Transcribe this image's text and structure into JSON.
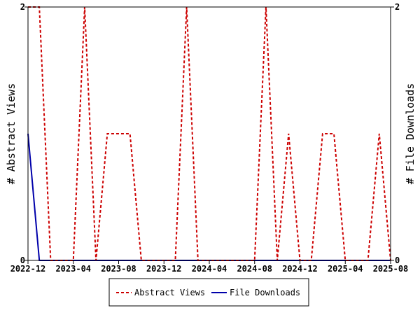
{
  "chart_data": {
    "type": "line",
    "title": "",
    "xlabel": "",
    "ylabel_left": "# Abstract Views",
    "ylabel_right": "# File Downloads",
    "x_ticks": [
      "2022-12",
      "2023-04",
      "2023-08",
      "2023-12",
      "2024-04",
      "2024-08",
      "2024-12",
      "2025-04",
      "2025-08"
    ],
    "y_left_ticks": [
      "0",
      "2"
    ],
    "y_right_ticks": [
      "0",
      "2"
    ],
    "ylim": [
      0,
      2
    ],
    "legend_position": "bottom",
    "x": [
      "2022-12",
      "2023-01",
      "2023-02",
      "2023-03",
      "2023-04",
      "2023-05",
      "2023-06",
      "2023-07",
      "2023-08",
      "2023-09",
      "2023-10",
      "2023-11",
      "2023-12",
      "2024-01",
      "2024-02",
      "2024-03",
      "2024-04",
      "2024-05",
      "2024-06",
      "2024-07",
      "2024-08",
      "2024-09",
      "2024-10",
      "2024-11",
      "2024-12",
      "2025-01",
      "2025-02",
      "2025-03",
      "2025-04",
      "2025-05",
      "2025-06",
      "2025-07",
      "2025-08"
    ],
    "series": [
      {
        "name": "Abstract Views",
        "color": "#cc0000",
        "dash": true,
        "values": [
          2,
          2,
          0,
          0,
          0,
          2,
          0,
          1,
          1,
          1,
          0,
          0,
          0,
          0,
          2,
          0,
          0,
          0,
          0,
          0,
          0,
          2,
          0,
          1,
          0,
          0,
          1,
          1,
          0,
          0,
          0,
          1,
          0
        ]
      },
      {
        "name": "File Downloads",
        "color": "#0000aa",
        "dash": false,
        "values": [
          1,
          0,
          0,
          0,
          0,
          0,
          0,
          0,
          0,
          0,
          0,
          0,
          0,
          0,
          0,
          0,
          0,
          0,
          0,
          0,
          0,
          0,
          0,
          0,
          0,
          0,
          0,
          0,
          0,
          0,
          0,
          0,
          0
        ]
      }
    ]
  }
}
